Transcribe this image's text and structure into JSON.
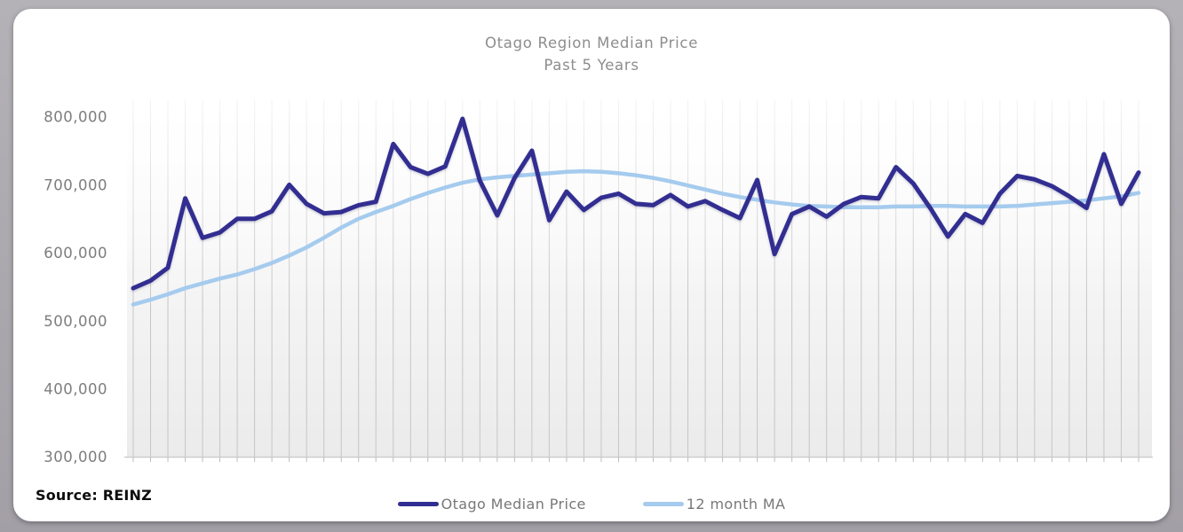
{
  "page": {
    "background": "#aaa8ad",
    "card_background": "#ffffff"
  },
  "title": {
    "line1": "Otago Region Median Price",
    "line2": "Past 5 Years"
  },
  "source": {
    "text": "Source: REINZ"
  },
  "legend": {
    "items": [
      {
        "label": "Otago Median Price",
        "color": "#312e91"
      },
      {
        "label": "12 month MA",
        "color": "#a5cbee"
      }
    ]
  },
  "chart_data": {
    "type": "line",
    "title": "Otago Region Median Price",
    "subtitle": "Past 5 Years",
    "grid": "vertical-only",
    "legend_position": "bottom-center",
    "x_axis": {
      "labels_visible": false,
      "points": 59,
      "description": "Monthly observations, past 5 years (no tick labels shown)"
    },
    "ylim": [
      300000,
      800000
    ],
    "y_ticks": [
      {
        "label": "800,000",
        "value": 800000
      },
      {
        "label": "700,000",
        "value": 700000
      },
      {
        "label": "600,000",
        "value": 600000
      },
      {
        "label": "500,000",
        "value": 500000
      },
      {
        "label": "400,000",
        "value": 400000
      },
      {
        "label": "300,000",
        "value": 300000
      }
    ],
    "series": [
      {
        "name": "Otago Median Price",
        "color": "#312e91",
        "stroke_width": 5,
        "values": [
          548000,
          559000,
          578000,
          680000,
          622000,
          630000,
          650000,
          650000,
          661000,
          700000,
          672000,
          658000,
          660000,
          670000,
          675000,
          760000,
          726000,
          716000,
          727000,
          797000,
          706000,
          655000,
          710000,
          750000,
          648000,
          690000,
          663000,
          681000,
          687000,
          672000,
          670000,
          685000,
          668000,
          676000,
          663000,
          651000,
          707000,
          598000,
          657000,
          668000,
          653000,
          672000,
          682000,
          680000,
          726000,
          702000,
          665000,
          624000,
          657000,
          644000,
          687000,
          713000,
          708000,
          698000,
          683000,
          666000,
          745000,
          672000,
          718000
        ]
      },
      {
        "name": "12 month MA",
        "color": "#a5cbee",
        "stroke_width": 4.5,
        "values": [
          524000,
          531000,
          539000,
          548000,
          555000,
          562000,
          568000,
          576000,
          585000,
          596000,
          608000,
          622000,
          637000,
          650000,
          660000,
          669000,
          679000,
          688000,
          696000,
          703000,
          708000,
          711000,
          713000,
          715000,
          717000,
          719000,
          720000,
          719000,
          717000,
          714000,
          710000,
          705000,
          699000,
          693000,
          687000,
          682000,
          678000,
          674000,
          671000,
          669000,
          668000,
          667000,
          667000,
          667000,
          668000,
          668000,
          669000,
          669000,
          668000,
          668000,
          668000,
          669000,
          671000,
          673000,
          675000,
          677000,
          680000,
          683000,
          688000
        ]
      }
    ]
  }
}
